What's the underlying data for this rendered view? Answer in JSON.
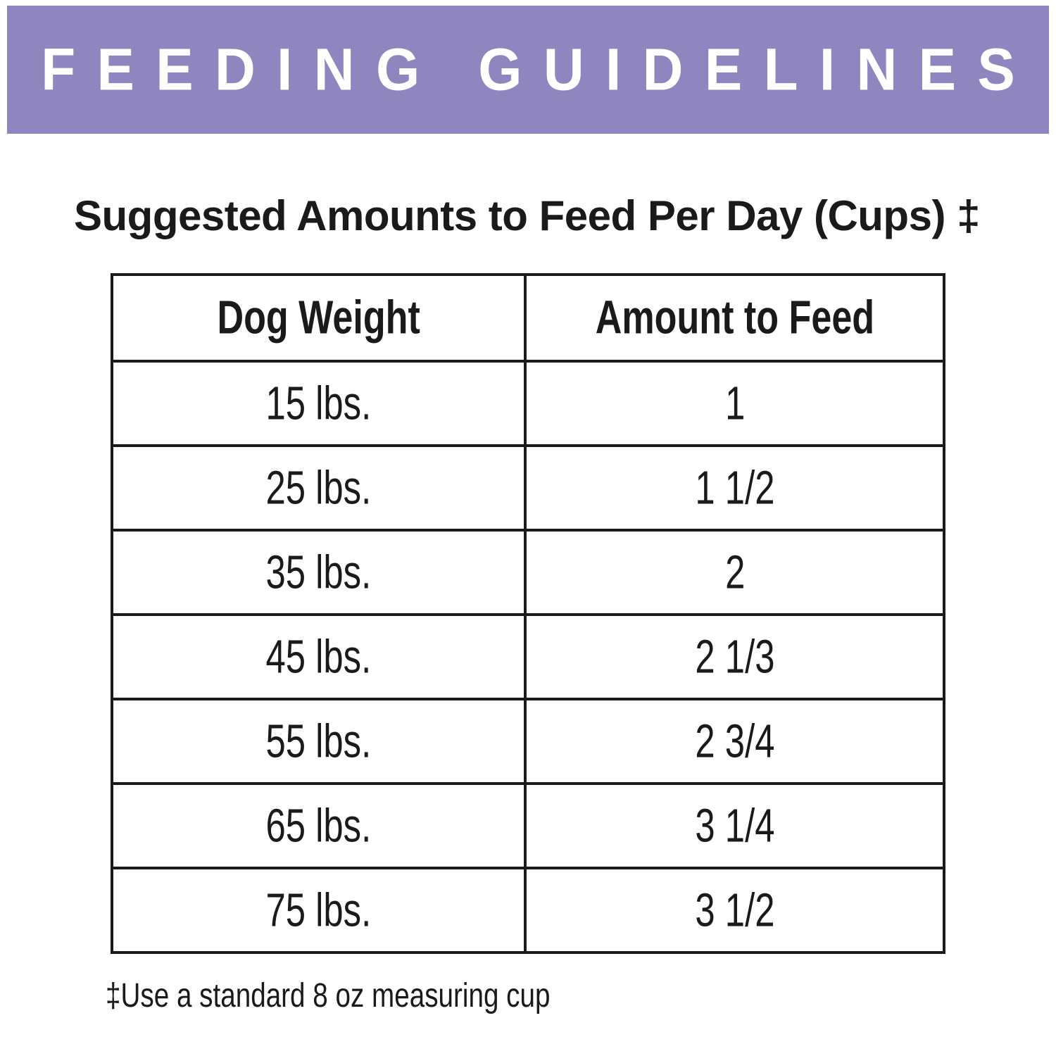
{
  "banner": {
    "title": "FEEDING GUIDELINES"
  },
  "subtitle": {
    "text": "Suggested Amounts to Feed Per Day (Cups) ‡"
  },
  "table": {
    "headers": [
      "Dog Weight",
      "Amount to Feed"
    ],
    "rows": [
      [
        "15 lbs.",
        "1"
      ],
      [
        "25 lbs.",
        "1 1/2"
      ],
      [
        "35 lbs.",
        "2"
      ],
      [
        "45 lbs.",
        "2 1/3"
      ],
      [
        "55 lbs.",
        "2 3/4"
      ],
      [
        "65 lbs.",
        "3 1/4"
      ],
      [
        "75 lbs.",
        "3 1/2"
      ]
    ]
  },
  "footnote": {
    "text": "‡Use a standard 8 oz measuring cup"
  },
  "colors": {
    "banner_purple": "#8f85bf",
    "banner_text": "#ffffff",
    "text_black": "#1a1a1a",
    "background": "#ffffff"
  }
}
